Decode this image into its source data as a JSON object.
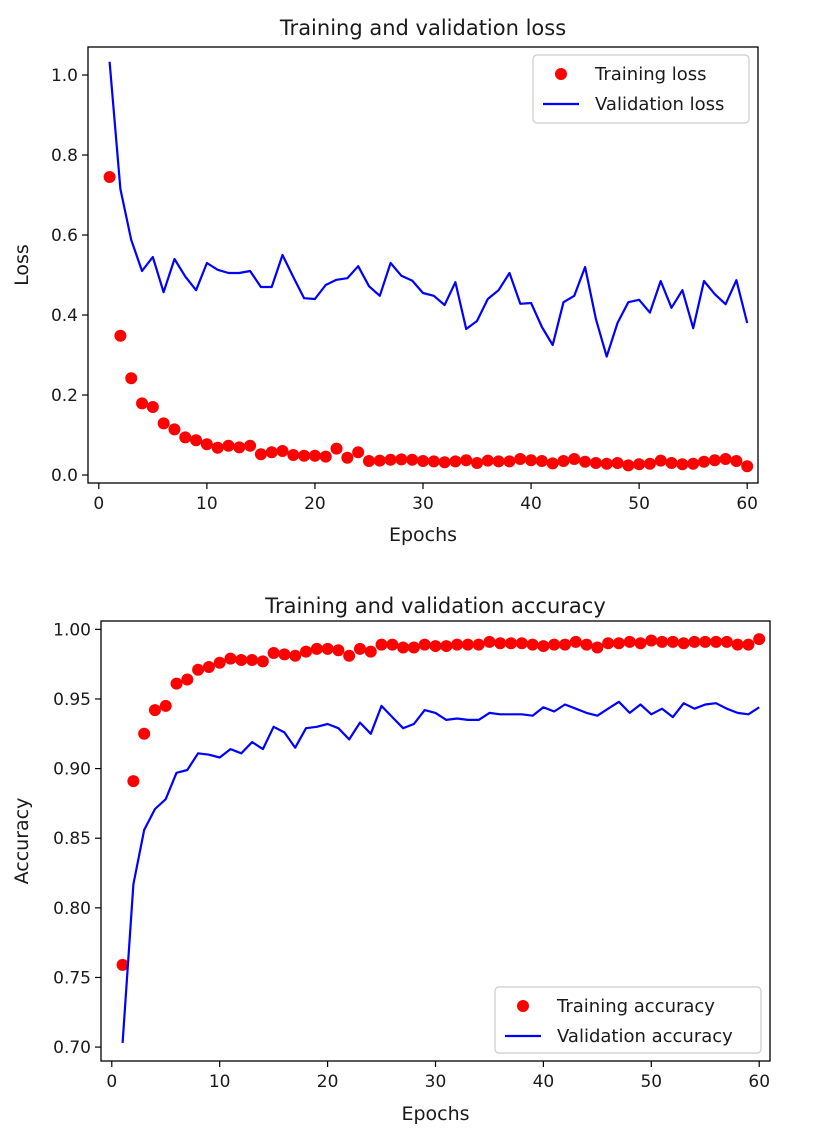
{
  "chart_data": [
    {
      "type": "line",
      "title": "Training and validation loss",
      "xlabel": "Epochs",
      "ylabel": "Loss",
      "xlim": [
        -1,
        61
      ],
      "ylim": [
        -0.02,
        1.07
      ],
      "xticks": [
        0,
        10,
        20,
        30,
        40,
        50,
        60
      ],
      "yticks": [
        0.0,
        0.2,
        0.4,
        0.6,
        0.8,
        1.0
      ],
      "xtick_labels": [
        "0",
        "10",
        "20",
        "30",
        "40",
        "50",
        "60"
      ],
      "ytick_labels": [
        "0.0",
        "0.2",
        "0.4",
        "0.6",
        "0.8",
        "1.0"
      ],
      "grid": false,
      "legend_position": "top-right",
      "x": [
        1,
        2,
        3,
        4,
        5,
        6,
        7,
        8,
        9,
        10,
        11,
        12,
        13,
        14,
        15,
        16,
        17,
        18,
        19,
        20,
        21,
        22,
        23,
        24,
        25,
        26,
        27,
        28,
        29,
        30,
        31,
        32,
        33,
        34,
        35,
        36,
        37,
        38,
        39,
        40,
        41,
        42,
        43,
        44,
        45,
        46,
        47,
        48,
        49,
        50,
        51,
        52,
        53,
        54,
        55,
        56,
        57,
        58,
        59,
        60
      ],
      "series": [
        {
          "name": "Training loss",
          "style": "scatter",
          "color": "#ff0000",
          "values": [
            0.745,
            0.348,
            0.242,
            0.179,
            0.17,
            0.129,
            0.114,
            0.094,
            0.087,
            0.077,
            0.068,
            0.073,
            0.069,
            0.073,
            0.052,
            0.057,
            0.06,
            0.05,
            0.048,
            0.048,
            0.046,
            0.066,
            0.043,
            0.057,
            0.035,
            0.036,
            0.038,
            0.039,
            0.038,
            0.035,
            0.034,
            0.032,
            0.034,
            0.037,
            0.03,
            0.036,
            0.034,
            0.034,
            0.04,
            0.037,
            0.035,
            0.029,
            0.035,
            0.04,
            0.033,
            0.03,
            0.028,
            0.03,
            0.024,
            0.027,
            0.028,
            0.036,
            0.03,
            0.027,
            0.028,
            0.033,
            0.037,
            0.04,
            0.035,
            0.022
          ]
        },
        {
          "name": "Validation loss",
          "style": "line",
          "color": "#0000ff",
          "values": [
            1.033,
            0.715,
            0.588,
            0.51,
            0.545,
            0.457,
            0.54,
            0.496,
            0.462,
            0.53,
            0.513,
            0.505,
            0.505,
            0.51,
            0.47,
            0.47,
            0.55,
            0.495,
            0.442,
            0.44,
            0.475,
            0.488,
            0.492,
            0.522,
            0.472,
            0.448,
            0.53,
            0.498,
            0.486,
            0.455,
            0.448,
            0.425,
            0.482,
            0.365,
            0.385,
            0.44,
            0.462,
            0.505,
            0.428,
            0.43,
            0.37,
            0.325,
            0.432,
            0.448,
            0.52,
            0.39,
            0.296,
            0.38,
            0.432,
            0.438,
            0.406,
            0.485,
            0.418,
            0.462,
            0.367,
            0.485,
            0.452,
            0.427,
            0.487,
            0.38
          ]
        }
      ]
    },
    {
      "type": "line",
      "title": "Training and validation accuracy",
      "xlabel": "Epochs",
      "ylabel": "Accuracy",
      "xlim": [
        -1,
        61
      ],
      "ylim": [
        0.69,
        1.006
      ],
      "xticks": [
        0,
        10,
        20,
        30,
        40,
        50,
        60
      ],
      "yticks": [
        0.7,
        0.75,
        0.8,
        0.85,
        0.9,
        0.95,
        1.0
      ],
      "xtick_labels": [
        "0",
        "10",
        "20",
        "30",
        "40",
        "50",
        "60"
      ],
      "ytick_labels": [
        "0.70",
        "0.75",
        "0.80",
        "0.85",
        "0.90",
        "0.95",
        "1.00"
      ],
      "grid": false,
      "legend_position": "bottom-right",
      "x": [
        1,
        2,
        3,
        4,
        5,
        6,
        7,
        8,
        9,
        10,
        11,
        12,
        13,
        14,
        15,
        16,
        17,
        18,
        19,
        20,
        21,
        22,
        23,
        24,
        25,
        26,
        27,
        28,
        29,
        30,
        31,
        32,
        33,
        34,
        35,
        36,
        37,
        38,
        39,
        40,
        41,
        42,
        43,
        44,
        45,
        46,
        47,
        48,
        49,
        50,
        51,
        52,
        53,
        54,
        55,
        56,
        57,
        58,
        59,
        60
      ],
      "series": [
        {
          "name": "Training accuracy",
          "style": "scatter",
          "color": "#ff0000",
          "values": [
            0.759,
            0.891,
            0.925,
            0.942,
            0.945,
            0.961,
            0.964,
            0.971,
            0.973,
            0.976,
            0.979,
            0.978,
            0.978,
            0.977,
            0.983,
            0.982,
            0.981,
            0.984,
            0.986,
            0.986,
            0.985,
            0.981,
            0.986,
            0.984,
            0.989,
            0.989,
            0.987,
            0.987,
            0.989,
            0.988,
            0.988,
            0.989,
            0.989,
            0.989,
            0.991,
            0.99,
            0.99,
            0.99,
            0.989,
            0.988,
            0.989,
            0.989,
            0.991,
            0.989,
            0.987,
            0.99,
            0.99,
            0.991,
            0.99,
            0.992,
            0.991,
            0.991,
            0.99,
            0.991,
            0.991,
            0.991,
            0.991,
            0.989,
            0.989,
            0.993
          ]
        },
        {
          "name": "Validation accuracy",
          "style": "line",
          "color": "#0000ff",
          "values": [
            0.703,
            0.817,
            0.856,
            0.871,
            0.878,
            0.897,
            0.899,
            0.911,
            0.91,
            0.908,
            0.914,
            0.911,
            0.919,
            0.914,
            0.93,
            0.926,
            0.915,
            0.929,
            0.93,
            0.932,
            0.929,
            0.921,
            0.933,
            0.925,
            0.945,
            0.937,
            0.929,
            0.932,
            0.942,
            0.94,
            0.935,
            0.936,
            0.935,
            0.935,
            0.94,
            0.939,
            0.939,
            0.939,
            0.938,
            0.944,
            0.941,
            0.946,
            0.943,
            0.94,
            0.938,
            0.943,
            0.948,
            0.94,
            0.946,
            0.939,
            0.943,
            0.937,
            0.947,
            0.943,
            0.946,
            0.947,
            0.943,
            0.94,
            0.939,
            0.944
          ]
        }
      ]
    }
  ]
}
